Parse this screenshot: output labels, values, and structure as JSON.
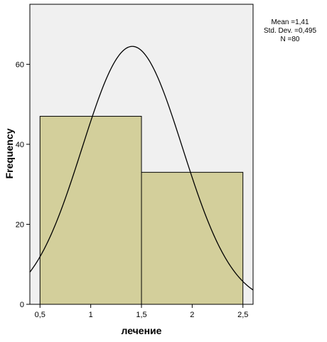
{
  "chart_data": {
    "type": "bar",
    "subtype": "histogram",
    "bins": [
      {
        "start": 0.5,
        "end": 1.5,
        "value": 47
      },
      {
        "start": 1.5,
        "end": 2.5,
        "value": 33
      }
    ],
    "normal_curve": {
      "mean": 1.41,
      "std_dev": 0.495,
      "n": 80,
      "bin_width": 1
    },
    "xlabel": "лечение",
    "ylabel": "Frequency",
    "xlim": [
      0.4,
      2.6
    ],
    "ylim": [
      0,
      75
    ],
    "x_ticks": [
      {
        "value": 0.5,
        "label": "0,5"
      },
      {
        "value": 1,
        "label": "1"
      },
      {
        "value": 1.5,
        "label": "1,5"
      },
      {
        "value": 2,
        "label": "2"
      },
      {
        "value": 2.5,
        "label": "2,5"
      }
    ],
    "y_ticks": [
      {
        "value": 0,
        "label": "0"
      },
      {
        "value": 20,
        "label": "20"
      },
      {
        "value": 40,
        "label": "40"
      },
      {
        "value": 60,
        "label": "60"
      }
    ],
    "bar_color": "#d3cf9b",
    "plot_background": "#f0f0f0",
    "grid": false
  },
  "stats": {
    "mean": "Mean =1,41",
    "std_dev": "Std. Dev. =0,495",
    "n": "N =80"
  }
}
